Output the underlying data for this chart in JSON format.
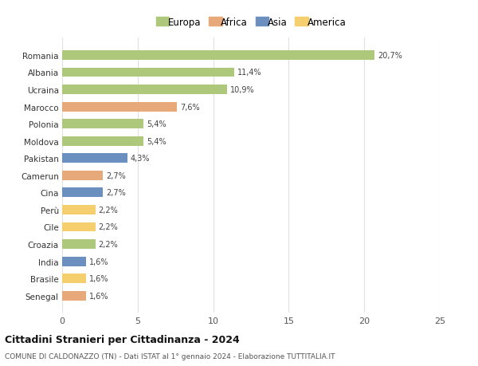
{
  "categories": [
    "Romania",
    "Albania",
    "Ucraina",
    "Marocco",
    "Polonia",
    "Moldova",
    "Pakistan",
    "Camerun",
    "Cina",
    "Perù",
    "Cile",
    "Croazia",
    "India",
    "Brasile",
    "Senegal"
  ],
  "values": [
    20.7,
    11.4,
    10.9,
    7.6,
    5.4,
    5.4,
    4.3,
    2.7,
    2.7,
    2.2,
    2.2,
    2.2,
    1.6,
    1.6,
    1.6
  ],
  "labels": [
    "20,7%",
    "11,4%",
    "10,9%",
    "7,6%",
    "5,4%",
    "5,4%",
    "4,3%",
    "2,7%",
    "2,7%",
    "2,2%",
    "2,2%",
    "2,2%",
    "1,6%",
    "1,6%",
    "1,6%"
  ],
  "colors": [
    "#adc87a",
    "#adc87a",
    "#adc87a",
    "#e8a97a",
    "#adc87a",
    "#adc87a",
    "#6b8fbf",
    "#e8a97a",
    "#6b8fbf",
    "#f5cf6e",
    "#f5cf6e",
    "#adc87a",
    "#6b8fbf",
    "#f5cf6e",
    "#e8a97a"
  ],
  "legend_labels": [
    "Europa",
    "Africa",
    "Asia",
    "America"
  ],
  "legend_colors": [
    "#adc87a",
    "#e8a97a",
    "#6b8fbf",
    "#f5cf6e"
  ],
  "title": "Cittadini Stranieri per Cittadinanza - 2024",
  "subtitle": "COMUNE DI CALDONAZZO (TN) - Dati ISTAT al 1° gennaio 2024 - Elaborazione TUTTITALIA.IT",
  "xlim": [
    0,
    25
  ],
  "xticks": [
    0,
    5,
    10,
    15,
    20,
    25
  ],
  "background_color": "#ffffff",
  "grid_color": "#e0e0e0"
}
